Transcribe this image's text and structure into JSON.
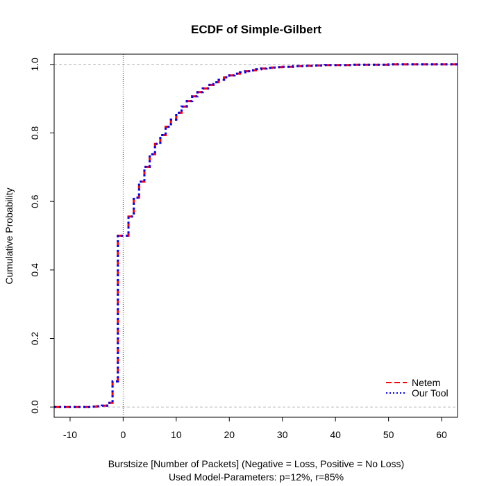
{
  "chart_data": {
    "type": "line",
    "step": true,
    "title": "ECDF of Simple-Gilbert",
    "xlabel": "Burstsize [Number of Packets] (Negative = Loss, Positive = No Loss)",
    "subtitle": "Used Model-Parameters: p=12%, r=85%",
    "ylabel": "Cumulative Probability",
    "xlim": [
      -13,
      63
    ],
    "ylim": [
      -0.03,
      1.03
    ],
    "xticks": [
      "-10",
      "0",
      "10",
      "20",
      "30",
      "40",
      "50",
      "60"
    ],
    "xtick_values": [
      -10,
      0,
      10,
      20,
      30,
      40,
      50,
      60
    ],
    "yticks": [
      "0.0",
      "0.2",
      "0.4",
      "0.6",
      "0.8",
      "1.0"
    ],
    "ytick_values": [
      0,
      0.2,
      0.4,
      0.6,
      0.8,
      1.0
    ],
    "reference_lines": {
      "horizontal": [
        0,
        1
      ],
      "vertical": [
        0
      ]
    },
    "legend_position": "bottom-right",
    "series": [
      {
        "name": "Netem",
        "color": "#ff0000",
        "dash": "long-dash"
      },
      {
        "name": "Our Tool",
        "color": "#0000ff",
        "dash": "dotted"
      }
    ],
    "x": [
      -13,
      -6,
      -5,
      -4,
      -3,
      -2,
      -1,
      1,
      2,
      3,
      4,
      5,
      6,
      7,
      8,
      9,
      10,
      11,
      12,
      13,
      14,
      15,
      16,
      17,
      18,
      19,
      20,
      21,
      22,
      23,
      24,
      25,
      26,
      27,
      28,
      29,
      30,
      32,
      34,
      36,
      38,
      40,
      43,
      46,
      50,
      55,
      63
    ],
    "y": [
      0,
      0.001,
      0.002,
      0.004,
      0.012,
      0.075,
      0.5,
      0.556,
      0.611,
      0.658,
      0.701,
      0.738,
      0.768,
      0.794,
      0.818,
      0.839,
      0.859,
      0.877,
      0.893,
      0.907,
      0.919,
      0.93,
      0.94,
      0.948,
      0.955,
      0.962,
      0.968,
      0.973,
      0.977,
      0.98,
      0.983,
      0.986,
      0.988,
      0.99,
      0.991,
      0.992,
      0.993,
      0.995,
      0.996,
      0.997,
      0.998,
      0.998,
      0.999,
      0.999,
      1.0,
      1.0,
      1.0
    ]
  }
}
